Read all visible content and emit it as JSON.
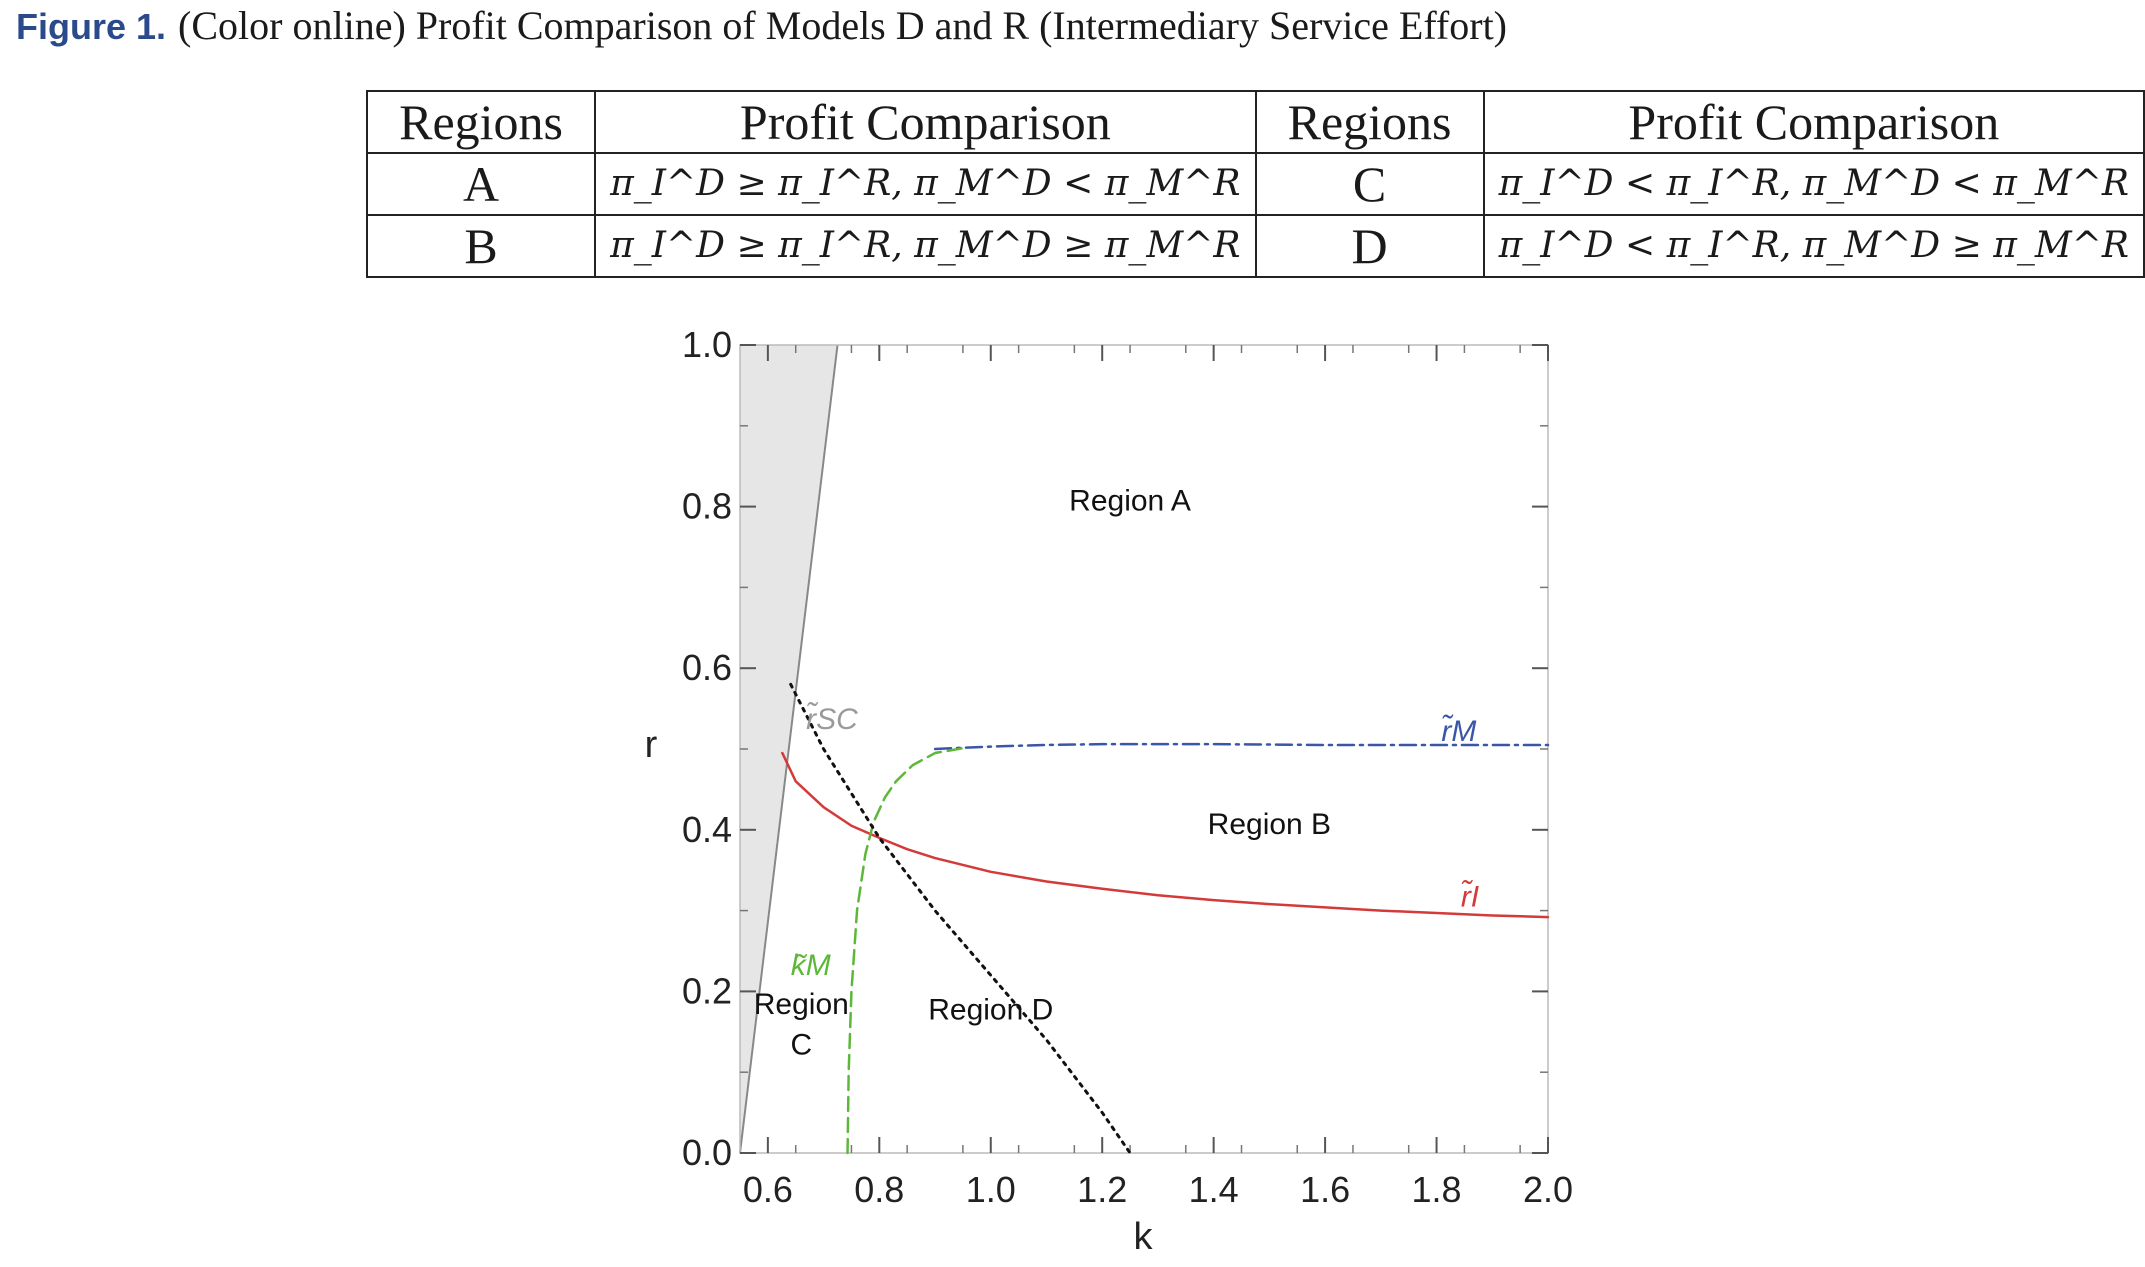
{
  "figure": {
    "label": "Figure 1.",
    "caption": "(Color online) Profit Comparison of Models D and R (Intermediary Service Effort)"
  },
  "legend_table": {
    "headers": [
      "Regions",
      "Profit Comparison",
      "Regions",
      "Profit Comparison"
    ],
    "rows": [
      {
        "region_left": "A",
        "comparison_left": "π_I^D ≥ π_I^R, π_M^D < π_M^R",
        "region_right": "C",
        "comparison_right": "π_I^D < π_I^R, π_M^D < π_M^R"
      },
      {
        "region_left": "B",
        "comparison_left": "π_I^D ≥ π_I^R, π_M^D ≥ π_M^R",
        "region_right": "D",
        "comparison_right": "π_I^D < π_I^R, π_M^D ≥ π_M^R"
      }
    ]
  },
  "chart_data": {
    "type": "line",
    "xlabel": "k",
    "ylabel": "r",
    "xlim": [
      0.55,
      2.0
    ],
    "ylim": [
      0.0,
      1.0
    ],
    "xticks": [
      "0.6",
      "0.8",
      "1.0",
      "1.2",
      "1.4",
      "1.6",
      "1.8",
      "2.0"
    ],
    "yticks": [
      "0.0",
      "0.2",
      "0.4",
      "0.6",
      "0.8",
      "1.0"
    ],
    "shaded_region": {
      "color": "#e6e6e6",
      "boundary_x": [
        0.55,
        0.725
      ],
      "boundary_y": [
        0.0,
        1.0
      ]
    },
    "series": [
      {
        "name": "r̃_I",
        "color": "#d43a3a",
        "style": "solid",
        "x": [
          0.626,
          0.65,
          0.7,
          0.75,
          0.8,
          0.85,
          0.9,
          1.0,
          1.1,
          1.2,
          1.3,
          1.4,
          1.5,
          1.6,
          1.7,
          1.8,
          1.9,
          2.0
        ],
        "y": [
          0.495,
          0.46,
          0.428,
          0.405,
          0.39,
          0.376,
          0.365,
          0.348,
          0.336,
          0.327,
          0.319,
          0.313,
          0.308,
          0.304,
          0.3,
          0.297,
          0.294,
          0.292
        ]
      },
      {
        "name": "r̃_M",
        "color": "#3a56a8",
        "style": "dashdot",
        "x": [
          0.9,
          1.0,
          1.1,
          1.2,
          1.4,
          1.6,
          1.8,
          2.0
        ],
        "y": [
          0.5,
          0.503,
          0.505,
          0.506,
          0.506,
          0.505,
          0.505,
          0.505
        ]
      },
      {
        "name": "k̃_M",
        "color": "#5db83a",
        "style": "dashed",
        "x": [
          0.743,
          0.745,
          0.75,
          0.76,
          0.775,
          0.79,
          0.81,
          0.83,
          0.86,
          0.9,
          0.95
        ],
        "y": [
          0.0,
          0.1,
          0.2,
          0.3,
          0.37,
          0.41,
          0.44,
          0.46,
          0.48,
          0.495,
          0.501
        ]
      },
      {
        "name": "r̃_SC",
        "color": "#111111",
        "style": "dotted",
        "x": [
          0.641,
          0.7,
          0.8,
          0.9,
          1.0,
          1.1,
          1.2,
          1.25
        ],
        "y": [
          0.58,
          0.5,
          0.39,
          0.3,
          0.22,
          0.14,
          0.05,
          0.0
        ]
      }
    ],
    "curve_labels": [
      "r̃SC",
      "r̃M",
      "r̃I",
      "k̃M"
    ],
    "annotations": [
      {
        "text": "Region A",
        "x": 1.25,
        "y": 0.795
      },
      {
        "text": "Region B",
        "x": 1.5,
        "y": 0.395
      },
      {
        "text": "Region",
        "x": 0.66,
        "y": 0.172
      },
      {
        "text": "C",
        "x": 0.66,
        "y": 0.122
      },
      {
        "text": "Region D",
        "x": 1.0,
        "y": 0.165
      }
    ]
  }
}
